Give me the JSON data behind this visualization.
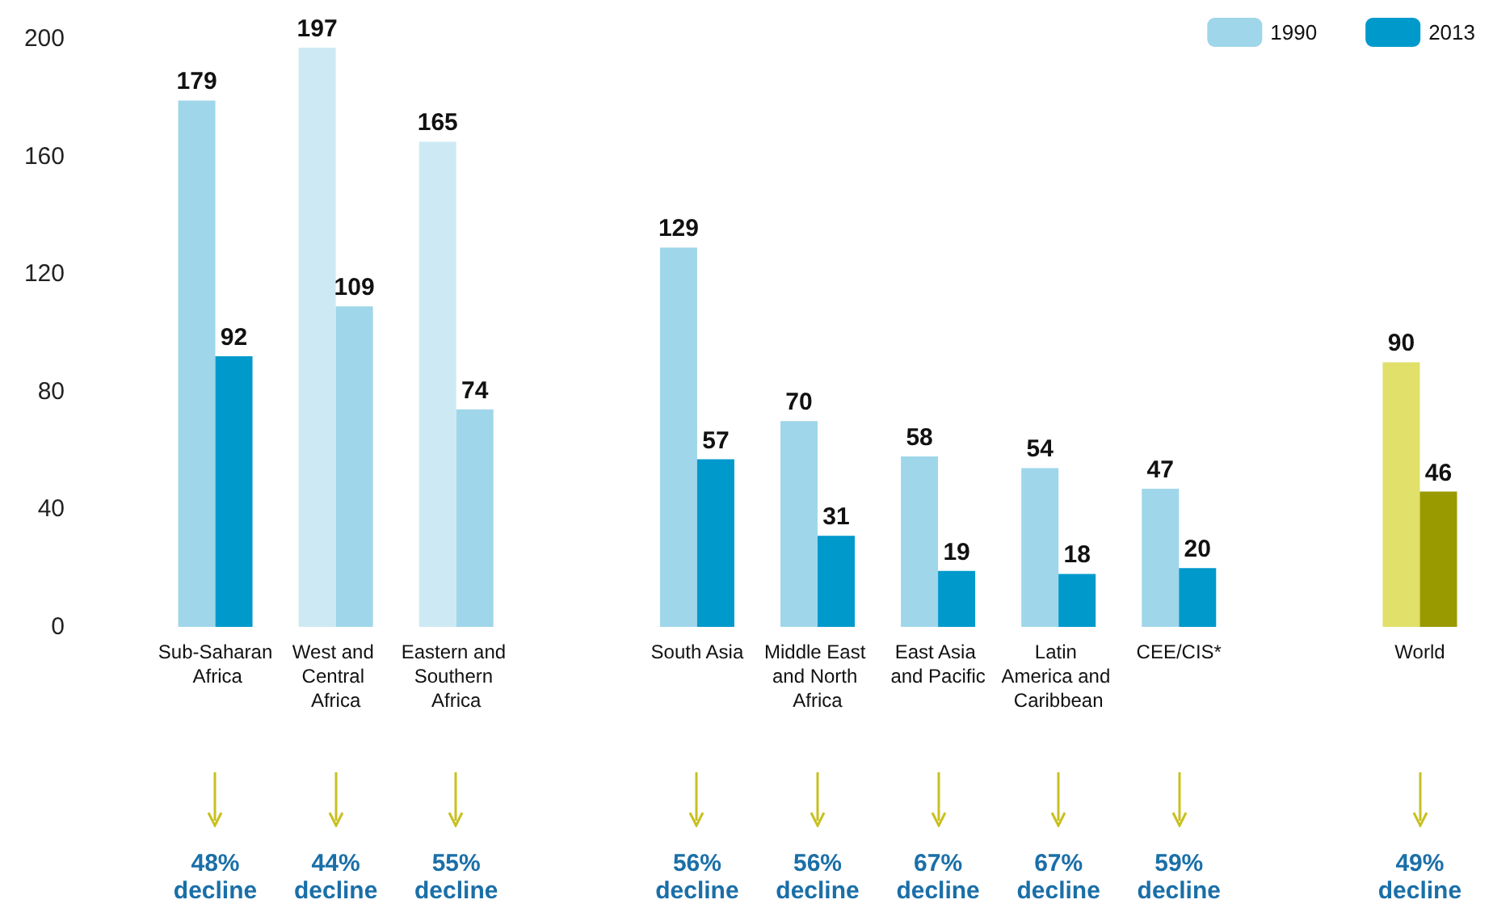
{
  "chart_data": {
    "type": "bar",
    "categories": [
      "Sub-Saharan Africa",
      "West and Central Africa",
      "Eastern and Southern Africa",
      null,
      "South Asia",
      "Middle East and North Africa",
      "East Asia and Pacific",
      "Latin America and Caribbean",
      "CEE/CIS*",
      null,
      "World"
    ],
    "series": [
      {
        "name": "1990",
        "color": "#9fd6ea",
        "colors": [
          "#9fd6ea",
          "#cdeaf4",
          "#cdeaf4",
          null,
          "#9fd6ea",
          "#9fd6ea",
          "#9fd6ea",
          "#9fd6ea",
          "#9fd6ea",
          null,
          "#e0e06a"
        ],
        "values": [
          179,
          197,
          165,
          null,
          129,
          70,
          58,
          54,
          47,
          null,
          90
        ]
      },
      {
        "name": "2013",
        "color": "#0099cc",
        "colors": [
          "#0099cc",
          "#9fd6ea",
          "#9fd6ea",
          null,
          "#0099cc",
          "#0099cc",
          "#0099cc",
          "#0099cc",
          "#0099cc",
          null,
          "#999900"
        ],
        "values": [
          92,
          109,
          74,
          null,
          57,
          31,
          19,
          18,
          20,
          null,
          46
        ]
      }
    ],
    "ylim": [
      0,
      200
    ],
    "yticks": [
      0,
      40,
      80,
      120,
      160,
      200
    ],
    "grid": false,
    "legend": "top right",
    "data_labels": true,
    "annotations": [
      "48% decline",
      "44% decline",
      "55% decline",
      "56% decline",
      "56% decline",
      "67% decline",
      "67% decline",
      "59% decline",
      "49% decline"
    ]
  }
}
